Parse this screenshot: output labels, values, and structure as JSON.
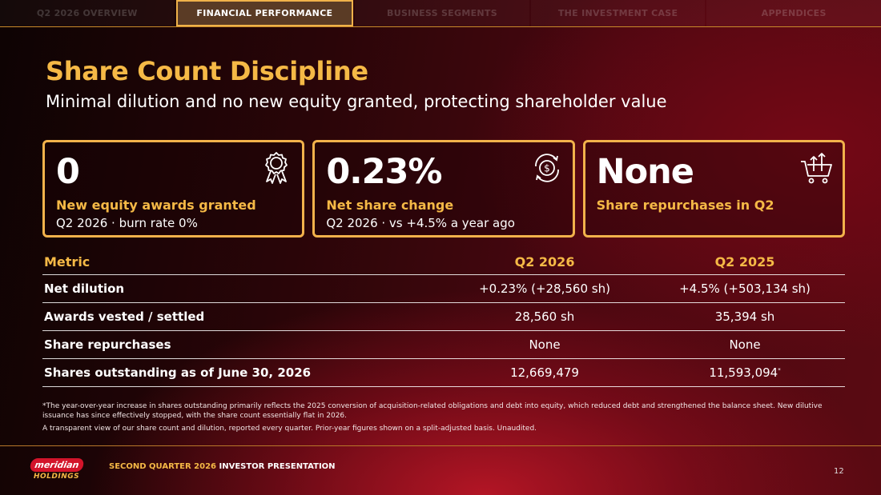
{
  "nav": {
    "tabs": [
      {
        "label": "Q2 2026 OVERVIEW"
      },
      {
        "label": "FINANCIAL PERFORMANCE"
      },
      {
        "label": "BUSINESS SEGMENTS"
      },
      {
        "label": "THE INVESTMENT CASE"
      },
      {
        "label": "APPENDICES"
      }
    ],
    "active_tab": "FINANCIAL PERFORMANCE"
  },
  "title": "Share Count Discipline",
  "subtitle": "Minimal dilution and no new equity granted, protecting shareholder value",
  "cards": [
    {
      "value": "0",
      "label": "New equity awards granted",
      "note": "Q2 2026 · burn rate 0%",
      "icon": "award-ribbon-icon"
    },
    {
      "value": "0.23%",
      "label": "Net share change",
      "note": "Q2 2026 · vs +4.5% a year ago",
      "icon": "dollar-cycle-icon"
    },
    {
      "value": "None",
      "label": "Share repurchases in Q2",
      "note": "",
      "icon": "cart-return-icon"
    }
  ],
  "table": {
    "headers": [
      "Metric",
      "Q2 2026",
      "Q2 2025"
    ],
    "rows": [
      {
        "metric": "Net dilution",
        "q2_2026": "+0.23% (+28,560 sh)",
        "q2_2025": "+4.5% (+503,134 sh)",
        "mark": ""
      },
      {
        "metric": "Awards vested / settled",
        "q2_2026": "28,560 sh",
        "q2_2025": "35,394 sh",
        "mark": ""
      },
      {
        "metric": "Share repurchases",
        "q2_2026": "None",
        "q2_2025": "None",
        "mark": ""
      },
      {
        "metric": "Shares outstanding as of June 30, 2026",
        "q2_2026": "12,669,479",
        "q2_2025": "11,593,094",
        "mark": "*"
      }
    ]
  },
  "footnote": "*The year-over-year increase in shares outstanding primarily reflects the 2025 conversion of acquisition-related obligations and debt into equity, which reduced debt and strengthened the balance sheet. New dilutive issuance has since effectively stopped, with the share count essentially flat in 2026.",
  "footnote2": "A transparent view of our share count and dilution, reported every quarter. Prior-year figures shown on a split-adjusted basis. Unaudited.",
  "footer": {
    "logo_word": "meridian",
    "logo_sub": "HOLDINGS",
    "highlight": "SECOND QUARTER 2026",
    "text": "INVESTOR PRESENTATION",
    "page": "12"
  },
  "colors": {
    "accent": "#f5b946",
    "brand_red": "#d3142a",
    "background": "#3a0509"
  }
}
